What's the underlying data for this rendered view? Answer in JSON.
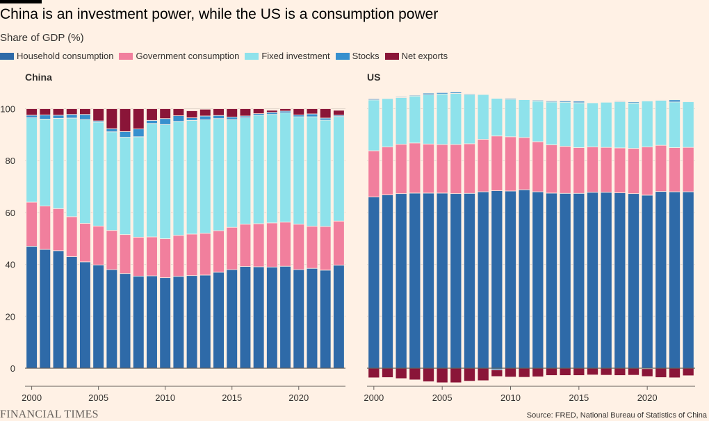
{
  "title": "China is an investment power, while the US is a consumption power",
  "subtitle": "Share of GDP (%)",
  "legend": [
    {
      "label": "Household consumption",
      "color": "#2E6AA8"
    },
    {
      "label": "Government consumption",
      "color": "#F17F9D"
    },
    {
      "label": "Fixed investment",
      "color": "#8EE2EB"
    },
    {
      "label": "Stocks",
      "color": "#3790CE"
    },
    {
      "label": "Net exports",
      "color": "#8A1538"
    }
  ],
  "source": "Source: FRED, National Bureau of Statistics of China",
  "logo": "FINANCIAL TIMES",
  "chart_data": [
    {
      "type": "bar",
      "stacked": true,
      "panel_title": "China",
      "x": [
        2000,
        2001,
        2002,
        2003,
        2004,
        2005,
        2006,
        2007,
        2008,
        2009,
        2010,
        2011,
        2012,
        2013,
        2014,
        2015,
        2016,
        2017,
        2018,
        2019,
        2020,
        2021,
        2022,
        2023
      ],
      "ylim": [
        0,
        100
      ],
      "yticks": [
        0,
        20,
        40,
        60,
        80,
        100
      ],
      "xticks": [
        2000,
        2005,
        2010,
        2015,
        2020
      ],
      "grid": true,
      "series": [
        {
          "name": "Household consumption",
          "values": [
            47.0,
            45.8,
            45.3,
            43.0,
            41.0,
            39.8,
            38.0,
            36.5,
            35.5,
            35.6,
            34.9,
            35.4,
            35.7,
            35.9,
            37.0,
            38.0,
            39.2,
            39.1,
            39.0,
            39.3,
            38.0,
            38.5,
            37.8,
            39.7
          ]
        },
        {
          "name": "Government consumption",
          "values": [
            17.0,
            16.7,
            16.2,
            15.4,
            14.8,
            15.0,
            15.1,
            15.0,
            15.0,
            15.0,
            15.0,
            15.8,
            16.0,
            16.1,
            16.0,
            16.3,
            16.3,
            16.6,
            17.0,
            17.0,
            17.5,
            16.2,
            16.8,
            17.0
          ]
        },
        {
          "name": "Fixed investment",
          "values": [
            32.5,
            33.5,
            34.8,
            38.0,
            40.0,
            40.0,
            38.0,
            37.5,
            38.7,
            43.7,
            44.0,
            43.9,
            43.8,
            43.7,
            43.2,
            41.5,
            41.0,
            41.8,
            41.8,
            42.1,
            41.4,
            42.2,
            41.0,
            40.3
          ]
        },
        {
          "name": "Stocks",
          "values": [
            1.0,
            1.6,
            1.2,
            1.4,
            2.0,
            0.5,
            1.2,
            2.2,
            3.0,
            1.2,
            2.3,
            2.2,
            1.0,
            1.5,
            1.2,
            1.0,
            0.7,
            0.6,
            0.8,
            0.7,
            0.7,
            1.1,
            0.8,
            0.5
          ]
        },
        {
          "name": "Net exports",
          "values": [
            2.5,
            2.4,
            2.5,
            2.2,
            2.2,
            4.7,
            7.7,
            8.8,
            7.8,
            4.5,
            3.8,
            2.7,
            2.7,
            2.6,
            2.6,
            3.2,
            2.8,
            1.9,
            0.8,
            0.9,
            2.4,
            2.0,
            3.6,
            1.9
          ]
        }
      ]
    },
    {
      "type": "bar",
      "stacked": true,
      "panel_title": "US",
      "x": [
        2000,
        2001,
        2002,
        2003,
        2004,
        2005,
        2006,
        2007,
        2008,
        2009,
        2010,
        2011,
        2012,
        2013,
        2014,
        2015,
        2016,
        2017,
        2018,
        2019,
        2020,
        2021,
        2022,
        2023
      ],
      "ylim": [
        -6,
        106
      ],
      "xticks": [
        2000,
        2005,
        2010,
        2015,
        2020
      ],
      "grid": true,
      "series": [
        {
          "name": "Household consumption",
          "values": [
            66.0,
            66.8,
            67.3,
            67.5,
            67.5,
            67.5,
            67.3,
            67.4,
            68.0,
            68.4,
            68.3,
            68.8,
            68.0,
            67.5,
            67.4,
            67.4,
            67.8,
            67.8,
            67.6,
            67.3,
            66.7,
            68.1,
            68.0,
            68.0
          ]
        },
        {
          "name": "Government consumption",
          "values": [
            17.8,
            18.5,
            19.0,
            19.3,
            18.9,
            18.7,
            18.9,
            19.1,
            20.2,
            21.1,
            20.9,
            20.1,
            19.3,
            18.6,
            18.1,
            17.6,
            17.5,
            17.3,
            17.3,
            17.4,
            18.6,
            17.8,
            17.0,
            17.1
          ]
        },
        {
          "name": "Fixed investment",
          "values": [
            19.6,
            18.6,
            18.0,
            18.1,
            19.0,
            19.5,
            19.7,
            19.0,
            17.3,
            14.5,
            14.4,
            14.6,
            15.7,
            16.5,
            17.0,
            17.3,
            17.0,
            17.4,
            17.8,
            17.5,
            17.7,
            17.4,
            17.6,
            17.6
          ]
        },
        {
          "name": "Stocks",
          "values": [
            0.4,
            0.0,
            0.3,
            0.3,
            0.6,
            0.5,
            0.5,
            0.3,
            0.2,
            -0.6,
            0.4,
            0.2,
            0.3,
            0.4,
            0.5,
            0.6,
            0.2,
            0.2,
            0.3,
            0.4,
            -0.2,
            0.1,
            0.8,
            0.2
          ]
        },
        {
          "name": "Net exports",
          "values": [
            -3.7,
            -3.6,
            -4.0,
            -4.5,
            -5.2,
            -5.6,
            -5.6,
            -5.0,
            -4.8,
            -2.6,
            -3.4,
            -3.5,
            -3.3,
            -2.8,
            -2.8,
            -2.8,
            -2.6,
            -2.7,
            -2.8,
            -2.7,
            -3.0,
            -3.6,
            -3.7,
            -2.9
          ]
        }
      ]
    }
  ]
}
